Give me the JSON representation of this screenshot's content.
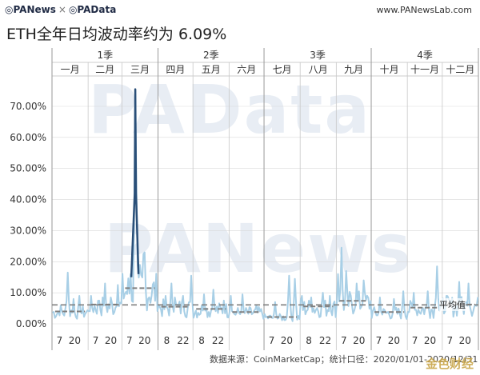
{
  "header": {
    "brand_left": "PANews",
    "brand_sep": "×",
    "brand_right": "PAData",
    "site": "www.PANewsLab.com"
  },
  "title": "ETH全年日均波动率约为 6.09%",
  "watermark": "PAData",
  "watermark2": "PANews",
  "source": "数据来源：CoinMarketCap；统计口径：2020/01/01-2020/12/31",
  "corner_logo": "金色财经",
  "colors": {
    "line": "#a8cfe6",
    "spike": "#2a4f78",
    "avg": "#7f7f7f",
    "grid": "#d9d9d9"
  },
  "chart_data": {
    "type": "line",
    "title": "ETH全年日均波动率约为 6.09%",
    "xlabel": "",
    "ylabel": "",
    "ylim": [
      0,
      0.8
    ],
    "yticks": [
      0,
      0.1,
      0.2,
      0.3,
      0.4,
      0.5,
      0.6,
      0.7
    ],
    "ytick_labels": [
      "0.00%",
      "10.00%",
      "20.00%",
      "30.00%",
      "40.00%",
      "50.00%",
      "60.00%",
      "70.00%"
    ],
    "quarters": [
      "1季",
      "2季",
      "3季",
      "4季"
    ],
    "months": [
      "一月",
      "二月",
      "三月",
      "四月",
      "五月",
      "六月",
      "七月",
      "八月",
      "九月",
      "十月",
      "十一月",
      "十二月"
    ],
    "month_days": [
      31,
      29,
      31,
      30,
      31,
      30,
      31,
      31,
      30,
      31,
      30,
      31
    ],
    "x_tick_labels": [
      [
        "7",
        "20"
      ],
      [
        "7",
        "20"
      ],
      [
        "7",
        "20"
      ],
      [
        "8",
        "22"
      ],
      [
        "8",
        "22"
      ],
      [],
      [
        "7",
        "20"
      ],
      [
        "8",
        "22"
      ],
      [
        "7",
        "20"
      ],
      [
        "7",
        "20"
      ],
      [
        "7",
        "20"
      ],
      [
        "7",
        "20"
      ]
    ],
    "annual_average_label": "平均值",
    "annual_average": 0.0609,
    "monthly_average": [
      0.04,
      0.062,
      0.115,
      0.055,
      0.048,
      0.038,
      0.022,
      0.056,
      0.074,
      0.038,
      0.052,
      0.062
    ],
    "spike": {
      "month": 3,
      "day": 12,
      "value": 0.755
    },
    "series": [
      {
        "name": "ETH",
        "peaks": [
          {
            "month": 1,
            "day": 5,
            "value": 0.03
          },
          {
            "month": 1,
            "day": 8,
            "value": 0.06
          },
          {
            "month": 1,
            "day": 14,
            "value": 0.165
          },
          {
            "month": 1,
            "day": 19,
            "value": 0.08
          },
          {
            "month": 1,
            "day": 24,
            "value": 0.09
          },
          {
            "month": 2,
            "day": 3,
            "value": 0.09
          },
          {
            "month": 2,
            "day": 10,
            "value": 0.075
          },
          {
            "month": 2,
            "day": 15,
            "value": 0.13
          },
          {
            "month": 2,
            "day": 20,
            "value": 0.085
          },
          {
            "month": 2,
            "day": 26,
            "value": 0.125
          },
          {
            "month": 3,
            "day": 8,
            "value": 0.16
          },
          {
            "month": 3,
            "day": 12,
            "value": 0.755
          },
          {
            "month": 3,
            "day": 13,
            "value": 0.42
          },
          {
            "month": 3,
            "day": 16,
            "value": 0.19
          },
          {
            "month": 3,
            "day": 19,
            "value": 0.225
          },
          {
            "month": 3,
            "day": 20,
            "value": 0.23
          },
          {
            "month": 4,
            "day": 1,
            "value": 0.06
          },
          {
            "month": 4,
            "day": 7,
            "value": 0.09
          },
          {
            "month": 4,
            "day": 12,
            "value": 0.13
          },
          {
            "month": 4,
            "day": 15,
            "value": 0.085
          },
          {
            "month": 4,
            "day": 22,
            "value": 0.09
          },
          {
            "month": 4,
            "day": 29,
            "value": 0.155
          },
          {
            "month": 5,
            "day": 10,
            "value": 0.095
          },
          {
            "month": 5,
            "day": 18,
            "value": 0.11
          },
          {
            "month": 5,
            "day": 27,
            "value": 0.075
          },
          {
            "month": 6,
            "day": 2,
            "value": 0.09
          },
          {
            "month": 6,
            "day": 12,
            "value": 0.095
          },
          {
            "month": 6,
            "day": 24,
            "value": 0.06
          },
          {
            "month": 7,
            "day": 10,
            "value": 0.07
          },
          {
            "month": 7,
            "day": 22,
            "value": 0.155
          },
          {
            "month": 7,
            "day": 27,
            "value": 0.145
          },
          {
            "month": 8,
            "day": 2,
            "value": 0.09
          },
          {
            "month": 8,
            "day": 10,
            "value": 0.085
          },
          {
            "month": 8,
            "day": 20,
            "value": 0.1
          },
          {
            "month": 8,
            "day": 26,
            "value": 0.09
          },
          {
            "month": 9,
            "day": 2,
            "value": 0.16
          },
          {
            "month": 9,
            "day": 5,
            "value": 0.245
          },
          {
            "month": 9,
            "day": 9,
            "value": 0.17
          },
          {
            "month": 9,
            "day": 18,
            "value": 0.13
          },
          {
            "month": 9,
            "day": 24,
            "value": 0.14
          },
          {
            "month": 10,
            "day": 8,
            "value": 0.085
          },
          {
            "month": 10,
            "day": 20,
            "value": 0.08
          },
          {
            "month": 10,
            "day": 28,
            "value": 0.105
          },
          {
            "month": 11,
            "day": 6,
            "value": 0.1
          },
          {
            "month": 11,
            "day": 18,
            "value": 0.105
          },
          {
            "month": 11,
            "day": 26,
            "value": 0.185
          },
          {
            "month": 12,
            "day": 4,
            "value": 0.09
          },
          {
            "month": 12,
            "day": 15,
            "value": 0.135
          },
          {
            "month": 12,
            "day": 23,
            "value": 0.13
          },
          {
            "month": 12,
            "day": 29,
            "value": 0.06
          }
        ]
      }
    ]
  }
}
